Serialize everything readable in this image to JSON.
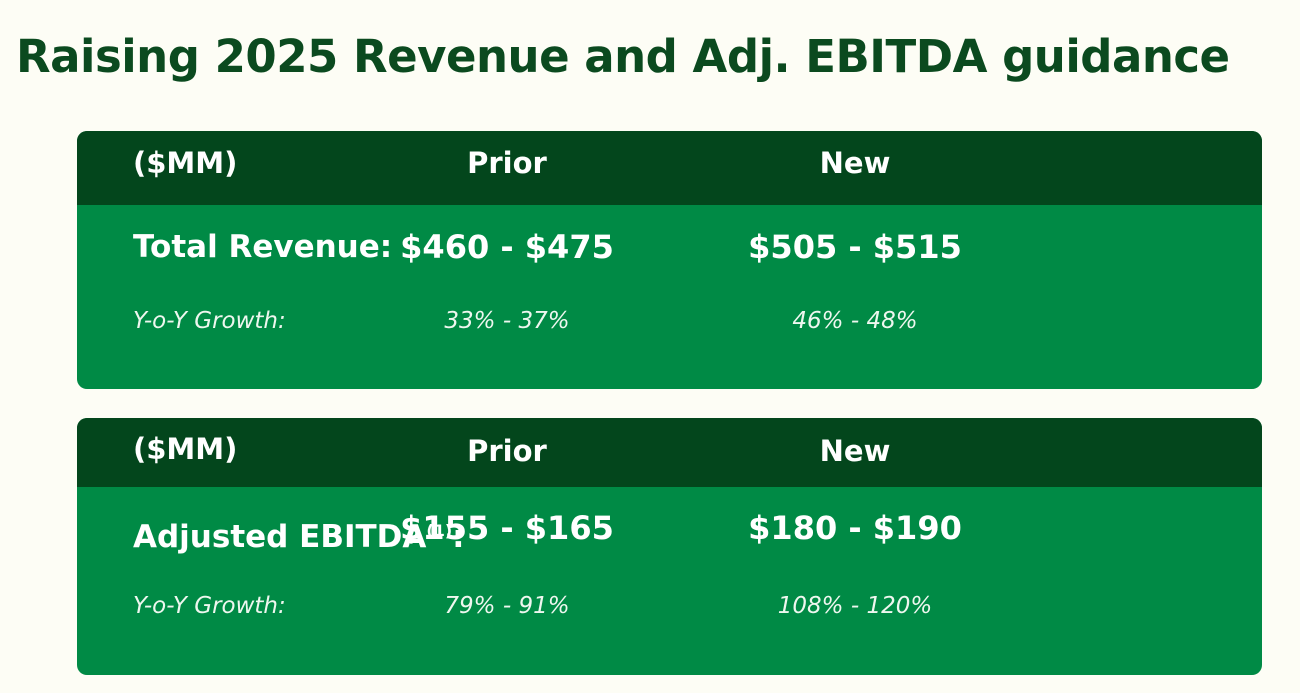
{
  "title": "Raising 2025 Revenue and Adj. EBITDA guidance",
  "colors": {
    "background": "#fdfdf5",
    "title": "#0b4a1f",
    "header_bg": "#03461c",
    "body_bg": "#008a45",
    "text": "#ffffff"
  },
  "tables": [
    {
      "header": {
        "unit": "($MM)",
        "prior": "Prior",
        "new": "New"
      },
      "metric": {
        "label": "Total Revenue:",
        "footnote": "",
        "prior": "$460 - $475",
        "new": "$505 - $515"
      },
      "growth": {
        "label": "Y-o-Y Growth:",
        "prior": "33% - 37%",
        "new": "46% - 48%"
      }
    },
    {
      "header": {
        "unit": "($MM)",
        "prior": "Prior",
        "new": "New"
      },
      "metric": {
        "label": "Adjusted EBITDA",
        "footnote": "(1)",
        "suffix": ":",
        "prior": "$155 - $165",
        "new": "$180 - $190"
      },
      "growth": {
        "label": "Y-o-Y Growth:",
        "prior": "79% - 91%",
        "new": "108% - 120%"
      }
    }
  ]
}
